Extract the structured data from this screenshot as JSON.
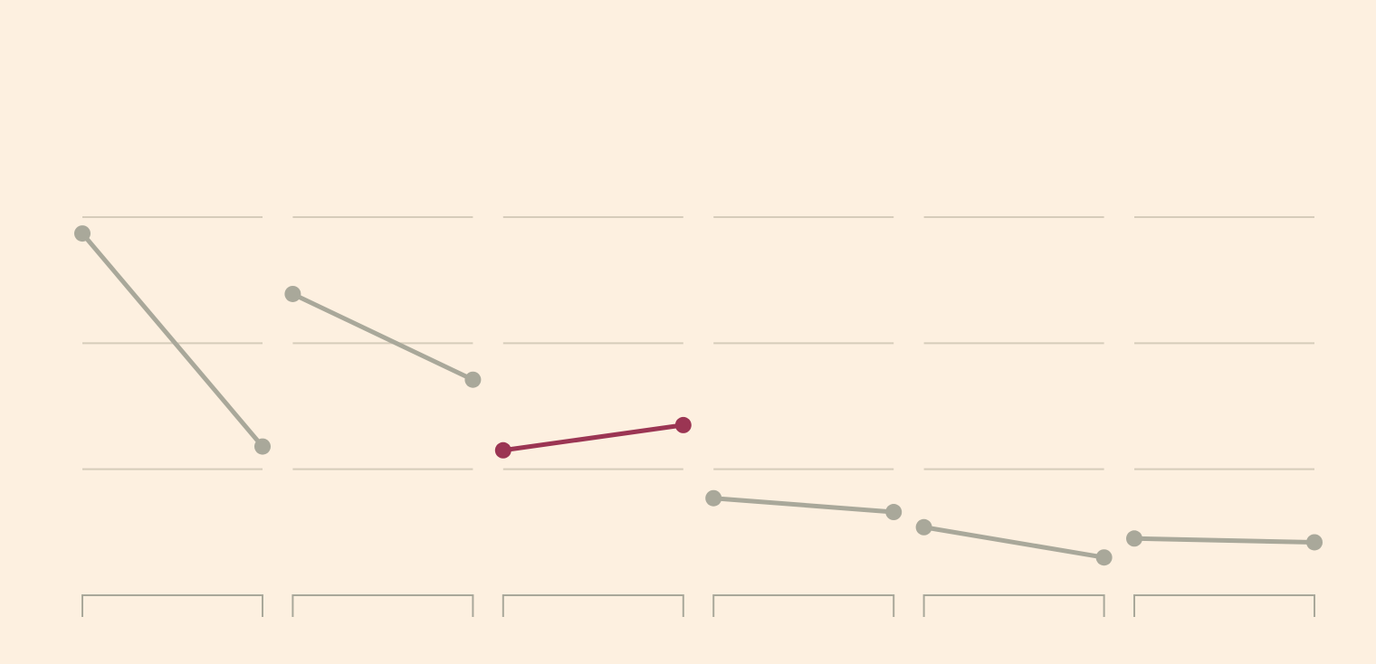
{
  "chart_data": {
    "type": "slope",
    "ylim": [
      0,
      3
    ],
    "yticks": [
      1,
      2,
      3
    ],
    "grid": true,
    "grid_color": "#d6ccba",
    "axis_color": "#a9a89a",
    "series": [
      {
        "color": "#a9a89a",
        "values": [
          2.87,
          1.18
        ]
      },
      {
        "color": "#a9a89a",
        "values": [
          2.39,
          1.71
        ]
      },
      {
        "color": "#9b3553",
        "values": [
          1.15,
          1.35
        ]
      },
      {
        "color": "#a9a89a",
        "values": [
          0.77,
          0.66
        ]
      },
      {
        "color": "#a9a89a",
        "values": [
          0.54,
          0.3
        ]
      },
      {
        "color": "#a9a89a",
        "values": [
          0.45,
          0.42
        ]
      }
    ]
  }
}
